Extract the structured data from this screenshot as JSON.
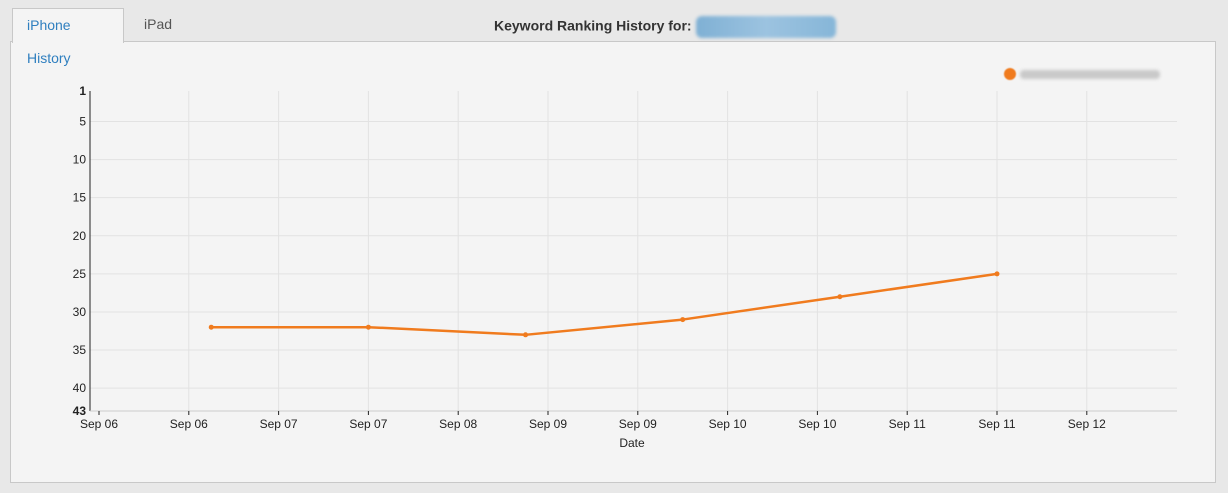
{
  "tabs": [
    {
      "label": "iPhone History",
      "active": true
    },
    {
      "label": "iPad History",
      "active": false
    }
  ],
  "heading": {
    "label": "Keyword Ranking History for:"
  },
  "colors": {
    "series": "#f07b1e",
    "grid": "#e2e2e2",
    "active_tab": "#2f7fbf"
  },
  "chart_data": {
    "type": "line",
    "xlabel": "Date",
    "ylabel": "",
    "y_inverted": true,
    "ylim": [
      1,
      43
    ],
    "y_ticks": [
      1,
      5,
      10,
      15,
      20,
      25,
      30,
      35,
      40,
      43
    ],
    "x_tick_labels": [
      "Sep 06",
      "Sep 06",
      "Sep 07",
      "Sep 07",
      "Sep 08",
      "Sep 09",
      "Sep 09",
      "Sep 10",
      "Sep 10",
      "Sep 11",
      "Sep 11",
      "Sep 12"
    ],
    "x_range": [
      0,
      12
    ],
    "grid": true,
    "legend_position": "top-right",
    "series": [
      {
        "x": [
          1.25,
          3.0,
          4.75,
          6.5,
          8.25,
          10.0
        ],
        "y": [
          32,
          32,
          33,
          31,
          28,
          25
        ]
      }
    ]
  }
}
